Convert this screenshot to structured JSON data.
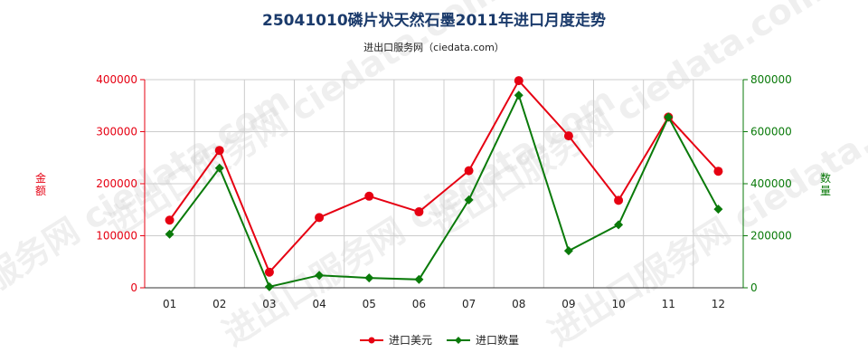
{
  "chart_data": {
    "type": "line",
    "title": "25041010磷片状天然石墨2011年进口月度走势",
    "subtitle": "进出口服务网（ciedata.com）",
    "categories": [
      "01",
      "02",
      "03",
      "04",
      "05",
      "06",
      "07",
      "08",
      "09",
      "10",
      "11",
      "12"
    ],
    "y_left": {
      "label": "金额",
      "ylim": [
        0,
        400000
      ],
      "ticks": [
        "0",
        "100000",
        "200000",
        "300000",
        "400000"
      ]
    },
    "y_right": {
      "label": "数量",
      "ylim": [
        0,
        800000
      ],
      "ticks": [
        "0",
        "200000",
        "400000",
        "600000",
        "800000"
      ]
    },
    "series": [
      {
        "name": "进口美元",
        "axis": "left",
        "color": "#e60012",
        "marker": "circle",
        "values": [
          130000,
          264000,
          30000,
          135000,
          176000,
          146000,
          225000,
          398000,
          292000,
          168000,
          328000,
          224000
        ]
      },
      {
        "name": "进口数量",
        "axis": "right",
        "color": "#0a7a0a",
        "marker": "diamond",
        "values": [
          206000,
          460000,
          4000,
          48000,
          38000,
          32000,
          338000,
          740000,
          142000,
          242000,
          656000,
          302000
        ]
      }
    ],
    "grid": true,
    "legend_position": "bottom-center",
    "watermark": "进出口服务网 ciedata.com"
  }
}
